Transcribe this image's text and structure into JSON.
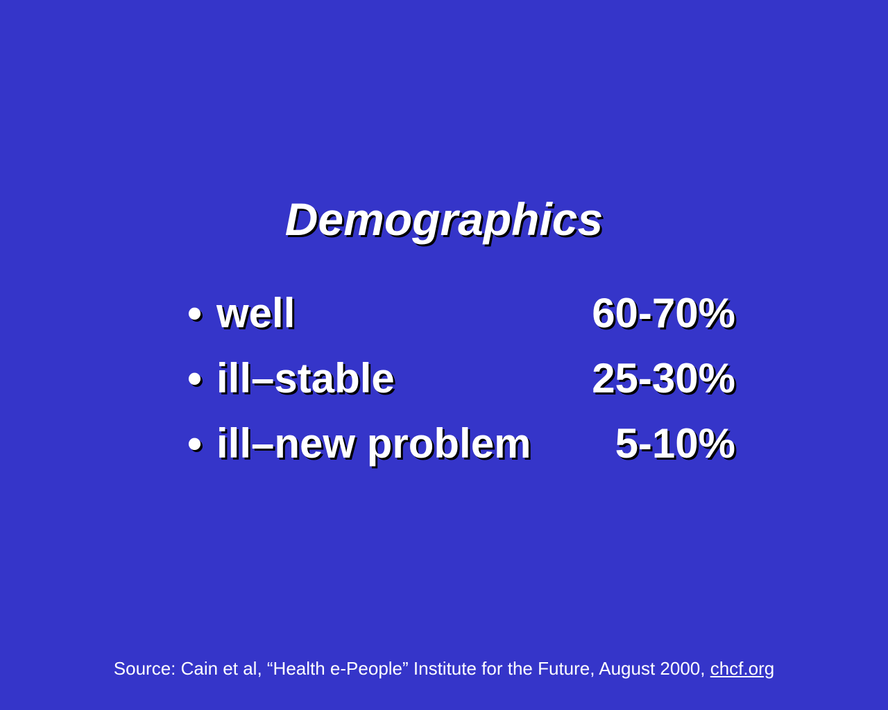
{
  "slide": {
    "title": "Demographics",
    "bullet_glyph": "•",
    "items": [
      {
        "label": "well",
        "value": "60-70%"
      },
      {
        "label": "ill–stable",
        "value": "25-30%"
      },
      {
        "label": "ill–new problem",
        "value": "5-10%"
      }
    ],
    "source_text": "Source: Cain et al, “Health e-People” Institute for the Future, August 2000, ",
    "source_link": "chcf.org"
  },
  "colors": {
    "background": "#3535c9",
    "text": "#ffffff",
    "shadow": "#000000"
  }
}
